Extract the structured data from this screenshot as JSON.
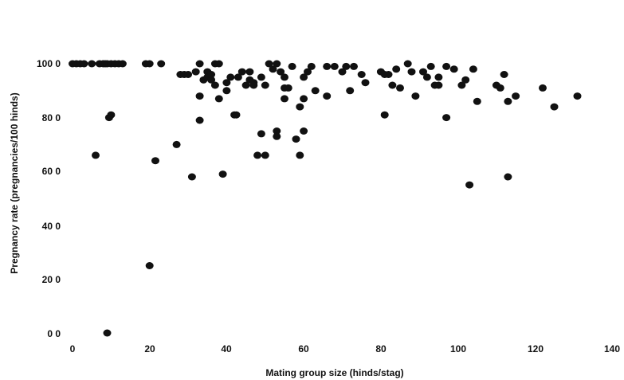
{
  "chart_data": {
    "type": "scatter",
    "xlabel": "Mating group size (hinds/stag)",
    "ylabel": "Pregnancy rate (pregnancies/100 hinds)",
    "xlim": [
      0,
      140
    ],
    "ylim": [
      0,
      100
    ],
    "x_ticks": [
      "0",
      "20",
      "40",
      "60",
      "80",
      "100",
      "120",
      "140"
    ],
    "y_ticks": [
      "0 0",
      "20 0",
      "40 0",
      "60 0",
      "80 0",
      "100 0"
    ],
    "grid": false,
    "legend": "none",
    "point_color": "#111111",
    "points": [
      {
        "x": 0,
        "y": 100
      },
      {
        "x": 1,
        "y": 100
      },
      {
        "x": 2,
        "y": 100
      },
      {
        "x": 3,
        "y": 100
      },
      {
        "x": 5,
        "y": 100
      },
      {
        "x": 6,
        "y": 66
      },
      {
        "x": 7,
        "y": 100
      },
      {
        "x": 8,
        "y": 100
      },
      {
        "x": 8.5,
        "y": 100
      },
      {
        "x": 9,
        "y": 100
      },
      {
        "x": 9,
        "y": 0
      },
      {
        "x": 9.5,
        "y": 80
      },
      {
        "x": 10,
        "y": 81
      },
      {
        "x": 10,
        "y": 100
      },
      {
        "x": 11,
        "y": 100
      },
      {
        "x": 12,
        "y": 100
      },
      {
        "x": 13,
        "y": 100
      },
      {
        "x": 19,
        "y": 100
      },
      {
        "x": 20,
        "y": 100
      },
      {
        "x": 20,
        "y": 25
      },
      {
        "x": 21.5,
        "y": 64
      },
      {
        "x": 23,
        "y": 100
      },
      {
        "x": 27,
        "y": 70
      },
      {
        "x": 28,
        "y": 96
      },
      {
        "x": 29,
        "y": 96
      },
      {
        "x": 30,
        "y": 96
      },
      {
        "x": 31,
        "y": 58
      },
      {
        "x": 32,
        "y": 97
      },
      {
        "x": 33,
        "y": 100
      },
      {
        "x": 33,
        "y": 88
      },
      {
        "x": 33,
        "y": 79
      },
      {
        "x": 34,
        "y": 94
      },
      {
        "x": 35,
        "y": 97
      },
      {
        "x": 35,
        "y": 95
      },
      {
        "x": 36,
        "y": 94
      },
      {
        "x": 36,
        "y": 96
      },
      {
        "x": 37,
        "y": 100
      },
      {
        "x": 37,
        "y": 92
      },
      {
        "x": 38,
        "y": 100
      },
      {
        "x": 38,
        "y": 87
      },
      {
        "x": 39,
        "y": 59
      },
      {
        "x": 40,
        "y": 93
      },
      {
        "x": 40,
        "y": 90
      },
      {
        "x": 41,
        "y": 95
      },
      {
        "x": 42,
        "y": 81
      },
      {
        "x": 42.5,
        "y": 81
      },
      {
        "x": 43,
        "y": 95
      },
      {
        "x": 44,
        "y": 97
      },
      {
        "x": 45,
        "y": 92
      },
      {
        "x": 46,
        "y": 94
      },
      {
        "x": 46,
        "y": 97
      },
      {
        "x": 47,
        "y": 93
      },
      {
        "x": 47,
        "y": 92
      },
      {
        "x": 48,
        "y": 66
      },
      {
        "x": 49,
        "y": 95
      },
      {
        "x": 49,
        "y": 74
      },
      {
        "x": 50,
        "y": 92
      },
      {
        "x": 50,
        "y": 66
      },
      {
        "x": 51,
        "y": 100
      },
      {
        "x": 52,
        "y": 98
      },
      {
        "x": 53,
        "y": 100
      },
      {
        "x": 53,
        "y": 75
      },
      {
        "x": 53,
        "y": 73
      },
      {
        "x": 54,
        "y": 97
      },
      {
        "x": 55,
        "y": 95
      },
      {
        "x": 55,
        "y": 91
      },
      {
        "x": 55,
        "y": 87
      },
      {
        "x": 56,
        "y": 91
      },
      {
        "x": 57,
        "y": 99
      },
      {
        "x": 58,
        "y": 72
      },
      {
        "x": 59,
        "y": 84
      },
      {
        "x": 59,
        "y": 66
      },
      {
        "x": 60,
        "y": 95
      },
      {
        "x": 60,
        "y": 87
      },
      {
        "x": 60,
        "y": 75
      },
      {
        "x": 61,
        "y": 97
      },
      {
        "x": 62,
        "y": 99
      },
      {
        "x": 63,
        "y": 90
      },
      {
        "x": 66,
        "y": 99
      },
      {
        "x": 66,
        "y": 88
      },
      {
        "x": 68,
        "y": 99
      },
      {
        "x": 70,
        "y": 97
      },
      {
        "x": 71,
        "y": 99
      },
      {
        "x": 72,
        "y": 90
      },
      {
        "x": 73,
        "y": 99
      },
      {
        "x": 75,
        "y": 96
      },
      {
        "x": 76,
        "y": 93
      },
      {
        "x": 80,
        "y": 97
      },
      {
        "x": 81,
        "y": 96
      },
      {
        "x": 81,
        "y": 81
      },
      {
        "x": 82,
        "y": 96
      },
      {
        "x": 83,
        "y": 92
      },
      {
        "x": 84,
        "y": 98
      },
      {
        "x": 85,
        "y": 91
      },
      {
        "x": 87,
        "y": 100
      },
      {
        "x": 88,
        "y": 97
      },
      {
        "x": 89,
        "y": 88
      },
      {
        "x": 91,
        "y": 97
      },
      {
        "x": 92,
        "y": 95
      },
      {
        "x": 93,
        "y": 99
      },
      {
        "x": 94,
        "y": 92
      },
      {
        "x": 95,
        "y": 92
      },
      {
        "x": 95,
        "y": 95
      },
      {
        "x": 97,
        "y": 99
      },
      {
        "x": 97,
        "y": 80
      },
      {
        "x": 99,
        "y": 98
      },
      {
        "x": 101,
        "y": 92
      },
      {
        "x": 102,
        "y": 94
      },
      {
        "x": 103,
        "y": 55
      },
      {
        "x": 104,
        "y": 98
      },
      {
        "x": 105,
        "y": 86
      },
      {
        "x": 110,
        "y": 92
      },
      {
        "x": 111,
        "y": 91
      },
      {
        "x": 112,
        "y": 96
      },
      {
        "x": 113,
        "y": 86
      },
      {
        "x": 113,
        "y": 58
      },
      {
        "x": 115,
        "y": 88
      },
      {
        "x": 122,
        "y": 91
      },
      {
        "x": 125,
        "y": 84
      },
      {
        "x": 131,
        "y": 88
      }
    ]
  }
}
